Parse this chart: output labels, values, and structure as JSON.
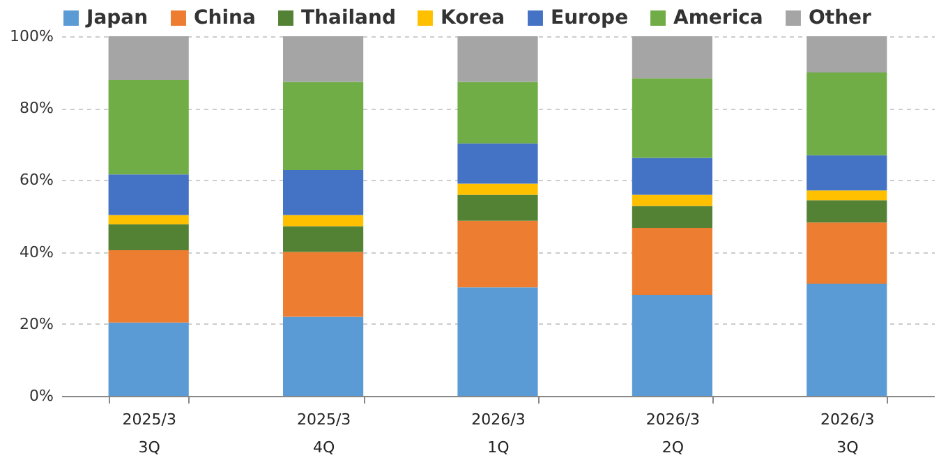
{
  "chart_data": {
    "type": "bar",
    "stacked": true,
    "categories": [
      "2025/3\n3Q",
      "2025/3\n4Q",
      "2026/3\n1Q",
      "2026/3\n2Q",
      "2026/3\n3Q"
    ],
    "series": [
      {
        "name": "Japan",
        "color": "#5b9bd5",
        "values": [
          20.4,
          22.0,
          30.2,
          28.1,
          31.2
        ]
      },
      {
        "name": "China",
        "color": "#ed7d31",
        "values": [
          20.1,
          18.0,
          18.5,
          18.6,
          17.0
        ]
      },
      {
        "name": "Thailand",
        "color": "#548235",
        "values": [
          7.2,
          7.2,
          7.2,
          6.1,
          6.2
        ]
      },
      {
        "name": "Korea",
        "color": "#ffc000",
        "values": [
          2.6,
          3.1,
          3.1,
          3.1,
          2.7
        ]
      },
      {
        "name": "Europe",
        "color": "#4472c4",
        "values": [
          11.3,
          12.5,
          11.2,
          10.3,
          9.8
        ]
      },
      {
        "name": "America",
        "color": "#70ad47",
        "values": [
          26.2,
          24.5,
          17.1,
          22.1,
          23.0
        ]
      },
      {
        "name": "Other",
        "color": "#a5a5a5",
        "values": [
          12.2,
          12.7,
          12.7,
          11.7,
          10.1
        ]
      }
    ],
    "ylim": [
      0,
      100
    ],
    "yticks": [
      {
        "value": 0,
        "label": "0%"
      },
      {
        "value": 20,
        "label": "20%"
      },
      {
        "value": 40,
        "label": "40%"
      },
      {
        "value": 60,
        "label": "60%"
      },
      {
        "value": 80,
        "label": "80%"
      },
      {
        "value": 100,
        "label": "100%"
      }
    ],
    "grid": "y",
    "legend": "top"
  }
}
